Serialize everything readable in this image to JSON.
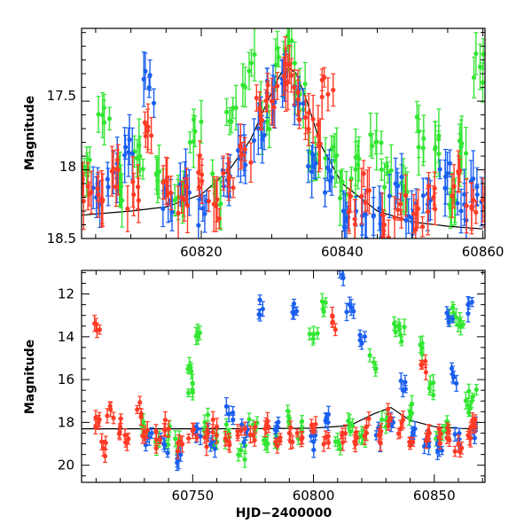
{
  "colors": {
    "green": "#33e633",
    "blue": "#1a5ff0",
    "red": "#ff3b26",
    "model": "#000000"
  },
  "chart_data": [
    {
      "type": "scatter",
      "panel": "top",
      "title": "",
      "xlabel": "",
      "ylabel": "Magnitude",
      "xlim": [
        60803.0,
        60860.3
      ],
      "ylim": [
        18.5,
        16.97
      ],
      "y_inverted": true,
      "x_ticks": [
        60820,
        60840,
        60860
      ],
      "y_ticks": [
        17.5,
        18,
        18.5
      ],
      "y_tick_labels": [
        "17.5",
        "18",
        "18.5"
      ],
      "grid": false,
      "legend": "none",
      "model_curve": {
        "description": "black microlensing-like model",
        "x": [
          60803,
          60810,
          60815,
          60820,
          60824,
          60827,
          60829,
          60830.5,
          60831.5,
          60832.5,
          60833.5,
          60835,
          60837,
          60840,
          60845,
          60850,
          60855,
          60860
        ],
        "y": [
          18.33,
          18.3,
          18.27,
          18.18,
          18.0,
          17.78,
          17.55,
          17.38,
          17.28,
          17.26,
          17.3,
          17.5,
          17.82,
          18.1,
          18.3,
          18.38,
          18.41,
          18.43
        ]
      },
      "series": [
        {
          "name": "",
          "color": "green",
          "points": [
            [
              60803.4,
              17.98
            ],
            [
              60806.2,
              17.55
            ],
            [
              60808.6,
              18.12
            ],
            [
              60811.3,
              17.9
            ],
            [
              60813.8,
              18.08
            ],
            [
              60816.7,
              18.2
            ],
            [
              60819.1,
              17.72
            ],
            [
              60822.0,
              18.15
            ],
            [
              60824.5,
              17.55
            ],
            [
              60826.8,
              17.28
            ],
            [
              60829.3,
              17.65
            ],
            [
              60831.0,
              17.18
            ],
            [
              60832.4,
              17.1
            ],
            [
              60834.0,
              17.45
            ],
            [
              60836.2,
              17.92
            ],
            [
              60838.5,
              17.85
            ],
            [
              60840.6,
              18.18
            ],
            [
              60842.4,
              17.92
            ],
            [
              60844.8,
              17.8
            ],
            [
              60846.5,
              18.02
            ],
            [
              60848.7,
              18.12
            ],
            [
              60850.9,
              17.72
            ],
            [
              60853.2,
              17.85
            ],
            [
              60855.4,
              18.28
            ],
            [
              60857.6,
              17.88
            ],
            [
              60859.6,
              17.25
            ]
          ]
        },
        {
          "name": "",
          "color": "blue",
          "points": [
            [
              60805.1,
              18.2
            ],
            [
              60807.5,
              18.02
            ],
            [
              60809.8,
              17.78
            ],
            [
              60812.6,
              17.4
            ],
            [
              60815.3,
              18.25
            ],
            [
              60817.8,
              18.05
            ],
            [
              60820.5,
              18.32
            ],
            [
              60823.2,
              18.12
            ],
            [
              60825.6,
              17.92
            ],
            [
              60828.1,
              17.7
            ],
            [
              60830.2,
              17.42
            ],
            [
              60832.0,
              17.32
            ],
            [
              60833.7,
              17.5
            ],
            [
              60836.0,
              17.98
            ],
            [
              60838.3,
              18.08
            ],
            [
              60840.2,
              18.3
            ],
            [
              60842.8,
              18.4
            ],
            [
              60845.3,
              18.28
            ],
            [
              60847.6,
              18.1
            ],
            [
              60849.9,
              18.35
            ],
            [
              60852.3,
              18.22
            ],
            [
              60854.7,
              18.05
            ],
            [
              60856.9,
              18.3
            ],
            [
              60859.2,
              18.18
            ]
          ]
        },
        {
          "name": "",
          "color": "red",
          "points": [
            [
              60803.9,
              18.12
            ],
            [
              60806.0,
              18.22
            ],
            [
              60808.2,
              18.0
            ],
            [
              60810.4,
              18.18
            ],
            [
              60812.9,
              17.75
            ],
            [
              60815.0,
              18.08
            ],
            [
              60817.2,
              18.2
            ],
            [
              60819.6,
              18.02
            ],
            [
              60821.8,
              18.25
            ],
            [
              60824.0,
              18.05
            ],
            [
              60826.2,
              17.85
            ],
            [
              60828.4,
              17.6
            ],
            [
              60830.0,
              17.5
            ],
            [
              60831.7,
              17.32
            ],
            [
              60833.2,
              17.4
            ],
            [
              60834.8,
              17.62
            ],
            [
              60836.6,
              17.75
            ],
            [
              60838.0,
              17.45
            ],
            [
              60841.0,
              18.3
            ],
            [
              60843.6,
              18.15
            ],
            [
              60846.0,
              18.4
            ],
            [
              60848.3,
              18.25
            ],
            [
              60850.6,
              18.32
            ],
            [
              60853.0,
              18.2
            ],
            [
              60855.9,
              18.12
            ],
            [
              60858.4,
              18.28
            ],
            [
              60860.0,
              18.22
            ]
          ]
        }
      ]
    },
    {
      "type": "scatter",
      "panel": "bottom",
      "title": "",
      "xlabel": "HJD−2400000",
      "ylabel": "Magnitude",
      "xlim": [
        60704,
        60871
      ],
      "ylim": [
        20.8,
        10.9
      ],
      "y_inverted": true,
      "x_ticks": [
        60750,
        60800,
        60850
      ],
      "y_ticks": [
        12,
        14,
        16,
        18,
        20
      ],
      "y_tick_labels": [
        "12",
        "14",
        "16",
        "18",
        "20"
      ],
      "grid": false,
      "legend": "none",
      "model_curve": {
        "description": "black baseline model",
        "x": [
          60704,
          60720,
          60740,
          60760,
          60780,
          60800,
          60815,
          60825,
          60832,
          60840,
          60850,
          60860,
          60868
        ],
        "y": [
          18.3,
          18.3,
          18.3,
          18.3,
          18.29,
          18.27,
          18.15,
          17.6,
          17.3,
          17.9,
          18.2,
          18.28,
          18.3
        ]
      },
      "series": [
        {
          "name": "",
          "color": "green",
          "points": [
            [
              60730,
              18.3
            ],
            [
              60735,
              19.2
            ],
            [
              60740,
              18.6
            ],
            [
              60744,
              19.0
            ],
            [
              60748,
              15.5
            ],
            [
              60750,
              16.6
            ],
            [
              60752,
              13.8
            ],
            [
              60755,
              18.0
            ],
            [
              60760,
              18.9
            ],
            [
              60765,
              18.5
            ],
            [
              60770,
              19.3
            ],
            [
              60775,
              18.1
            ],
            [
              60780,
              19.0
            ],
            [
              60785,
              18.7
            ],
            [
              60790,
              17.8
            ],
            [
              60795,
              18.4
            ],
            [
              60800,
              13.9
            ],
            [
              60805,
              12.4
            ],
            [
              60810,
              18.9
            ],
            [
              60815,
              18.0
            ],
            [
              60820,
              18.6
            ],
            [
              60825,
              15.2
            ],
            [
              60830,
              18.2
            ],
            [
              60834,
              13.5
            ],
            [
              60836,
              13.9
            ],
            [
              60840,
              17.5
            ],
            [
              60845,
              14.5
            ],
            [
              60848,
              16.4
            ],
            [
              60852,
              18.9
            ],
            [
              60855,
              18.4
            ],
            [
              60858,
              12.9
            ],
            [
              60861,
              13.5
            ],
            [
              60864,
              17.2
            ],
            [
              60866,
              16.8
            ]
          ]
        },
        {
          "name": "",
          "color": "blue",
          "points": [
            [
              60732,
              18.7
            ],
            [
              60738,
              19.0
            ],
            [
              60745,
              19.5
            ],
            [
              60752,
              18.3
            ],
            [
              60758,
              18.9
            ],
            [
              60765,
              17.6
            ],
            [
              60772,
              18.5
            ],
            [
              60779,
              12.7
            ],
            [
              60785,
              18.2
            ],
            [
              60793,
              12.8
            ],
            [
              60800,
              18.9
            ],
            [
              60806,
              18.0
            ],
            [
              60812,
              11.1
            ],
            [
              60815,
              12.5
            ],
            [
              60820,
              14.3
            ],
            [
              60826,
              18.6
            ],
            [
              60833,
              18.0
            ],
            [
              60837,
              16.5
            ],
            [
              60842,
              18.3
            ],
            [
              60847,
              18.7
            ],
            [
              60852,
              19.2
            ],
            [
              60856,
              13.3
            ],
            [
              60858,
              15.9
            ],
            [
              60860,
              18.8
            ],
            [
              60864,
              12.5
            ],
            [
              60866,
              18.3
            ]
          ]
        },
        {
          "name": "",
          "color": "red",
          "points": [
            [
              60710,
              13.4
            ],
            [
              60711,
              18.0
            ],
            [
              60713,
              19.2
            ],
            [
              60716,
              17.4
            ],
            [
              60720,
              18.2
            ],
            [
              60722,
              18.6
            ],
            [
              60727,
              17.4
            ],
            [
              60730,
              18.5
            ],
            [
              60735,
              18.8
            ],
            [
              60740,
              18.3
            ],
            [
              60745,
              18.9
            ],
            [
              60750,
              18.4
            ],
            [
              60755,
              18.7
            ],
            [
              60760,
              18.2
            ],
            [
              60765,
              18.9
            ],
            [
              60770,
              18.4
            ],
            [
              60775,
              18.6
            ],
            [
              60780,
              18.3
            ],
            [
              60785,
              19.1
            ],
            [
              60790,
              18.5
            ],
            [
              60795,
              18.8
            ],
            [
              60800,
              18.3
            ],
            [
              60805,
              18.7
            ],
            [
              60808,
              13.3
            ],
            [
              60812,
              18.5
            ],
            [
              60817,
              18.9
            ],
            [
              60822,
              18.2
            ],
            [
              60827,
              18.6
            ],
            [
              60832,
              17.8
            ],
            [
              60836,
              18.3
            ],
            [
              60840,
              18.9
            ],
            [
              60845,
              15.3
            ],
            [
              60848,
              18.5
            ],
            [
              60852,
              18.7
            ],
            [
              60856,
              18.4
            ],
            [
              60860,
              19.0
            ],
            [
              60864,
              18.6
            ],
            [
              60867,
              18.2
            ]
          ]
        }
      ]
    }
  ]
}
